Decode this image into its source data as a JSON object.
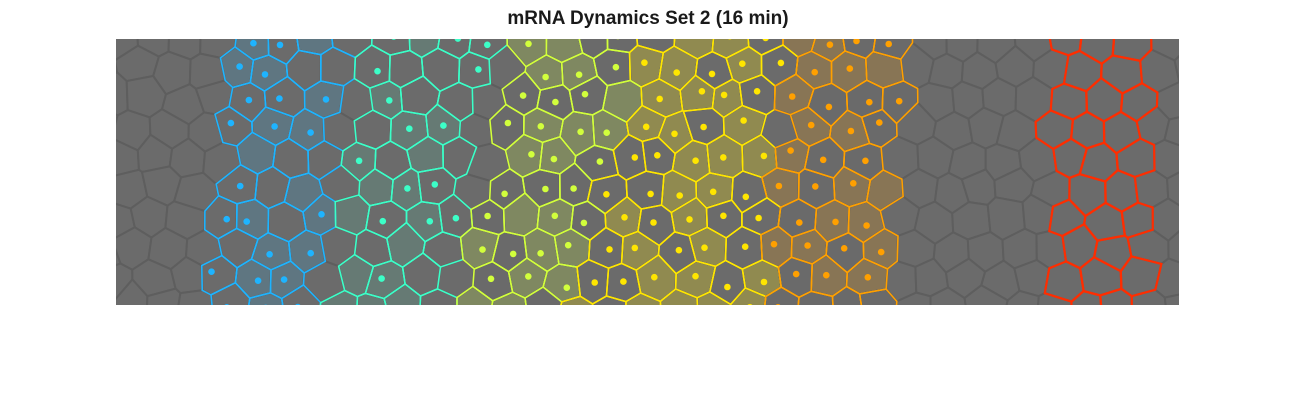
{
  "figure": {
    "title": "mRNA Dynamics Set 2 (16 min)"
  },
  "image_panel": {
    "description_colors": {
      "background": "#6b6b6b",
      "cell_edge": "#5e5e5e",
      "stripe_colors": [
        "#1eb4ff",
        "#3cffc8",
        "#d2ff3c",
        "#ffe600",
        "#ffa000",
        "#ff2d00"
      ]
    }
  }
}
